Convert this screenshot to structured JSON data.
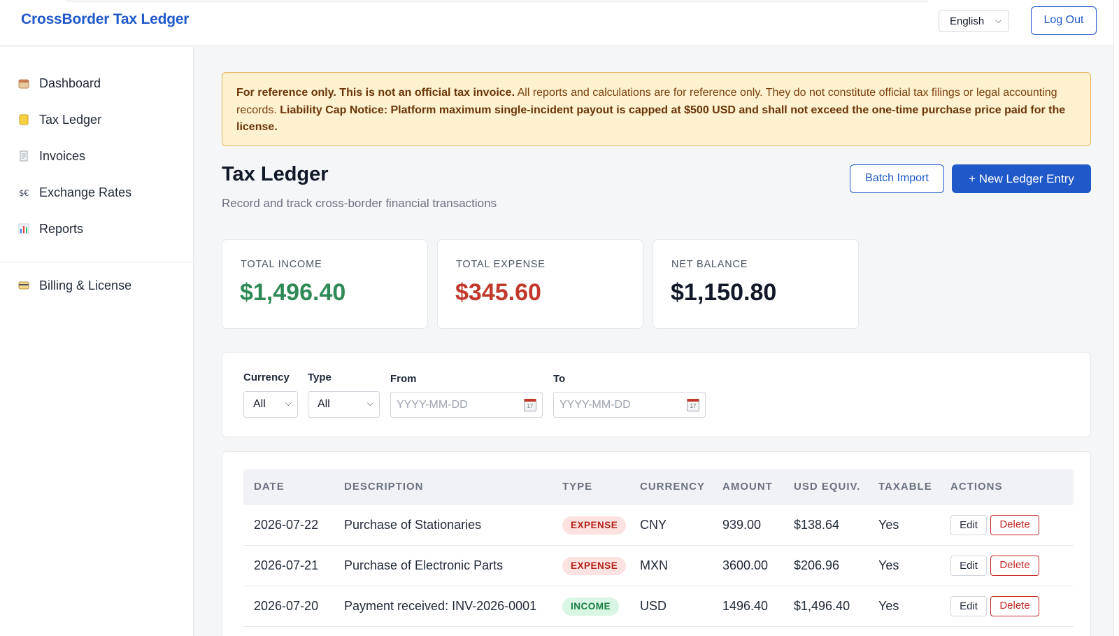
{
  "header": {
    "brand": "CrossBorder Tax Ledger",
    "language": "English",
    "logout_label": "Log Out"
  },
  "sidebar": {
    "items": [
      {
        "label": "Dashboard",
        "icon": "calendar-icon"
      },
      {
        "label": "Tax Ledger",
        "icon": "ledger-icon"
      },
      {
        "label": "Invoices",
        "icon": "receipt-icon"
      },
      {
        "label": "Exchange Rates",
        "icon": "exchange-icon"
      },
      {
        "label": "Reports",
        "icon": "bar-chart-icon"
      }
    ],
    "billing": {
      "label": "Billing & License",
      "icon": "credit-card-icon"
    }
  },
  "notice": {
    "bold_lead": "For reference only. This is not an official tax invoice.",
    "body": " All reports and calculations are for reference only. They do not constitute official tax filings or legal accounting records. ",
    "bold_tail": "Liability Cap Notice: Platform maximum single-incident payout is capped at $500 USD and shall not exceed the one-time purchase price paid for the license."
  },
  "page": {
    "title": "Tax Ledger",
    "subtitle": "Record and track cross-border financial transactions",
    "batch_import_label": "Batch Import",
    "new_entry_label": "+ New Ledger Entry"
  },
  "stats": {
    "income": {
      "label": "TOTAL INCOME",
      "value": "$1,496.40",
      "color": "#2f8a57"
    },
    "expense": {
      "label": "TOTAL EXPENSE",
      "value": "$345.60",
      "color": "#c0392b"
    },
    "net": {
      "label": "NET BALANCE",
      "value": "$1,150.80",
      "color": "#111827"
    }
  },
  "filters": {
    "currency_label": "Currency",
    "currency_value": "All",
    "type_label": "Type",
    "type_value": "All",
    "from_label": "From",
    "from_placeholder": "YYYY-MM-DD",
    "to_label": "To",
    "to_placeholder": "YYYY-MM-DD"
  },
  "table": {
    "columns": [
      "DATE",
      "DESCRIPTION",
      "TYPE",
      "CURRENCY",
      "AMOUNT",
      "USD EQUIV.",
      "TAXABLE",
      "ACTIONS"
    ],
    "edit_label": "Edit",
    "delete_label": "Delete",
    "rows": [
      {
        "date": "2026-07-22",
        "description": "Purchase of Stationaries",
        "type": "EXPENSE",
        "currency": "CNY",
        "amount": "939.00",
        "usd": "$138.64",
        "taxable": "Yes"
      },
      {
        "date": "2026-07-21",
        "description": "Purchase of Electronic Parts",
        "type": "EXPENSE",
        "currency": "MXN",
        "amount": "3600.00",
        "usd": "$206.96",
        "taxable": "Yes"
      },
      {
        "date": "2026-07-20",
        "description": "Payment received: INV-2026-0001",
        "type": "INCOME",
        "currency": "USD",
        "amount": "1496.40",
        "usd": "$1,496.40",
        "taxable": "Yes"
      }
    ]
  },
  "colors": {
    "accent": "#1f58c8",
    "warning_bg": "#fdf1cf",
    "danger": "#c62828"
  }
}
